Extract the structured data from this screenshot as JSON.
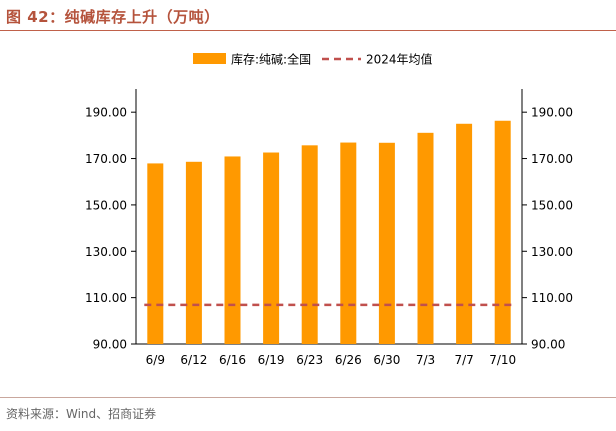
{
  "header": {
    "figure_title": "图 42：纯碱库存上升（万吨）"
  },
  "footer": {
    "source": "资料来源：Wind、招商证券"
  },
  "colors": {
    "bar": "#ff9900",
    "avg_line": "#c0504d",
    "title": "#b5533c",
    "axis": "#000000"
  },
  "chart_data": {
    "type": "bar",
    "title": "",
    "xlabel": "",
    "ylabel": "",
    "categories": [
      "6/9",
      "6/12",
      "6/16",
      "6/19",
      "6/23",
      "6/26",
      "6/30",
      "7/3",
      "7/7",
      "7/10"
    ],
    "series": [
      {
        "name": "库存:纯碱:全国",
        "kind": "bar",
        "values": [
          167.9,
          168.6,
          170.9,
          172.6,
          175.7,
          176.9,
          176.8,
          181.1,
          185.0,
          186.3
        ]
      },
      {
        "name": "2024年均值",
        "kind": "dashed-line",
        "values": [
          106.9,
          106.9,
          106.9,
          106.9,
          106.9,
          106.9,
          106.9,
          106.9,
          106.9,
          106.9
        ]
      }
    ],
    "ylim": [
      90,
      200
    ],
    "yticks": [
      "90.00",
      "110.00",
      "130.00",
      "150.00",
      "170.00",
      "190.00"
    ],
    "y2ticks": [
      "90.00",
      "110.00",
      "130.00",
      "150.00",
      "170.00",
      "190.00"
    ],
    "legend": "top-center",
    "grid": false
  }
}
